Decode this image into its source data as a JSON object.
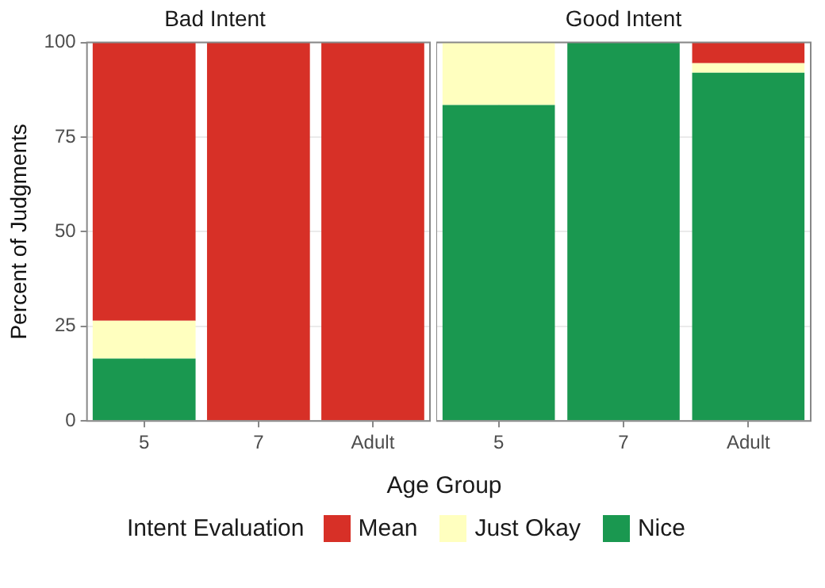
{
  "chart_data": [
    {
      "type": "bar",
      "title": "Bad Intent",
      "xlabel": "Age Group",
      "ylabel": "Percent of Judgments",
      "legend_title": "Intent Evaluation",
      "legend": "bottom",
      "stacked": true,
      "grid": true,
      "categories": [
        "5",
        "7",
        "Adult"
      ],
      "ylim": [
        0,
        100
      ],
      "yticks": [
        0,
        25,
        50,
        75,
        100
      ],
      "series": [
        {
          "name": "Nice",
          "color": "#1a9850",
          "values": [
            16.5,
            0,
            0
          ]
        },
        {
          "name": "Just Okay",
          "color": "#ffffbf",
          "values": [
            10,
            0,
            0
          ]
        },
        {
          "name": "Mean",
          "color": "#d73027",
          "values": [
            73.5,
            100,
            100
          ]
        }
      ]
    },
    {
      "type": "bar",
      "title": "Good Intent",
      "stacked": true,
      "grid": true,
      "tick_labels": "x",
      "categories": [
        "5",
        "7",
        "Adult"
      ],
      "ylim": [
        0,
        100
      ],
      "yticks": [
        0,
        25,
        50,
        75,
        100
      ],
      "series": [
        {
          "color": "#1a9850",
          "values": [
            83.5,
            100,
            92
          ]
        },
        {
          "color": "#ffffbf",
          "values": [
            16.5,
            0,
            2.5
          ]
        },
        {
          "color": "#d73027",
          "values": [
            0,
            0,
            5.5
          ]
        }
      ]
    }
  ]
}
